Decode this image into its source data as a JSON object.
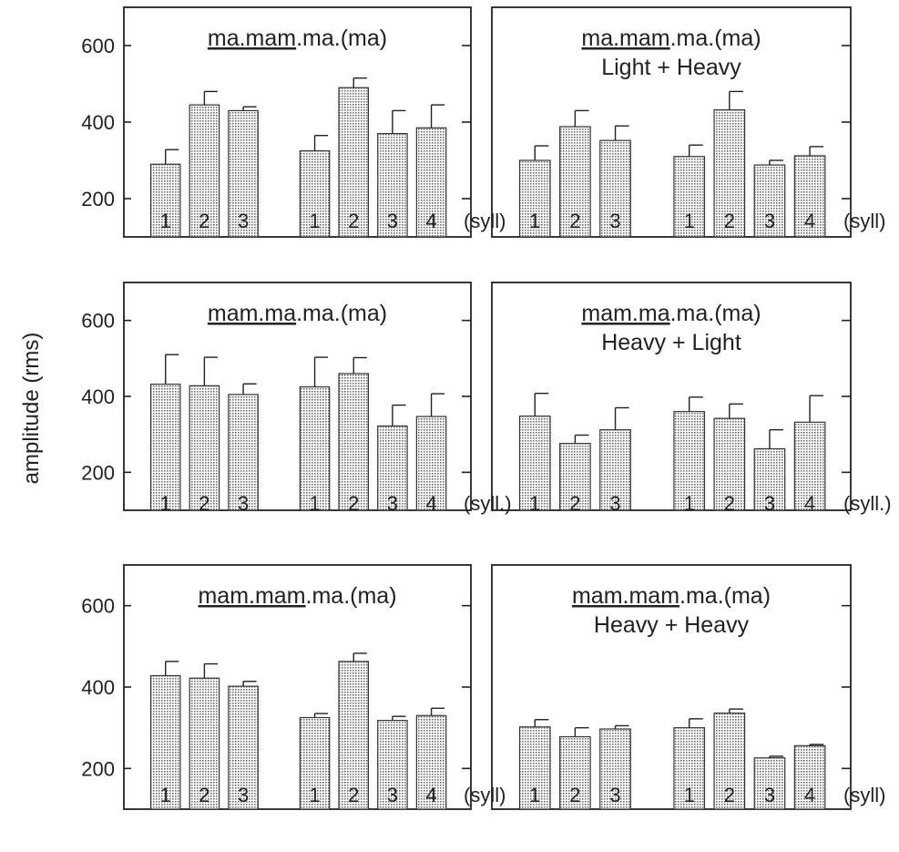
{
  "figure": {
    "ylabel": "amplitude (rms)",
    "ylim": [
      100,
      700
    ],
    "yticks": [
      200,
      400,
      600
    ]
  },
  "chart_data": [
    {
      "type": "bar",
      "title_parts": [
        {
          "text": "ma.mam",
          "underline": true
        },
        {
          "text": ".ma.(ma)",
          "underline": false
        }
      ],
      "subtitle": "",
      "groups": [
        {
          "categories": [
            "1",
            "2",
            "3"
          ],
          "values": [
            290,
            445,
            430
          ],
          "errors": [
            38,
            35,
            10
          ]
        },
        {
          "categories": [
            "1",
            "2",
            "3",
            "4"
          ],
          "values": [
            325,
            490,
            370,
            385
          ],
          "errors": [
            40,
            25,
            60,
            60
          ]
        }
      ],
      "end_label": "(syll)"
    },
    {
      "type": "bar",
      "title_parts": [
        {
          "text": "ma.mam",
          "underline": true
        },
        {
          "text": ".ma.(ma)",
          "underline": false
        }
      ],
      "subtitle": "Light + Heavy",
      "groups": [
        {
          "categories": [
            "1",
            "2",
            "3"
          ],
          "values": [
            300,
            388,
            352
          ],
          "errors": [
            38,
            42,
            38
          ]
        },
        {
          "categories": [
            "1",
            "2",
            "3",
            "4"
          ],
          "values": [
            310,
            432,
            288,
            312
          ],
          "errors": [
            30,
            48,
            12,
            24
          ]
        }
      ],
      "end_label": "(syll)"
    },
    {
      "type": "bar",
      "title_parts": [
        {
          "text": "mam.ma",
          "underline": true
        },
        {
          "text": ".ma.(ma)",
          "underline": false
        }
      ],
      "subtitle": "",
      "groups": [
        {
          "categories": [
            "1",
            "2",
            "3"
          ],
          "values": [
            432,
            428,
            405
          ],
          "errors": [
            78,
            75,
            28
          ]
        },
        {
          "categories": [
            "1",
            "2",
            "3",
            "4"
          ],
          "values": [
            425,
            460,
            322,
            347
          ],
          "errors": [
            78,
            42,
            55,
            60
          ]
        }
      ],
      "end_label": "(syll.)"
    },
    {
      "type": "bar",
      "title_parts": [
        {
          "text": "mam.ma",
          "underline": true
        },
        {
          "text": ".ma.(ma)",
          "underline": false
        }
      ],
      "subtitle": "Heavy + Light",
      "groups": [
        {
          "categories": [
            "1",
            "2",
            "3"
          ],
          "values": [
            348,
            276,
            312
          ],
          "errors": [
            60,
            22,
            58
          ]
        },
        {
          "categories": [
            "1",
            "2",
            "3",
            "4"
          ],
          "values": [
            360,
            342,
            262,
            332
          ],
          "errors": [
            38,
            38,
            50,
            70
          ]
        }
      ],
      "end_label": "(syll.)"
    },
    {
      "type": "bar",
      "title_parts": [
        {
          "text": "mam.mam",
          "underline": true
        },
        {
          "text": ".ma.(ma)",
          "underline": false
        }
      ],
      "subtitle": "",
      "groups": [
        {
          "categories": [
            "1",
            "2",
            "3"
          ],
          "values": [
            428,
            422,
            402
          ],
          "errors": [
            35,
            35,
            12
          ]
        },
        {
          "categories": [
            "1",
            "2",
            "3",
            "4"
          ],
          "values": [
            325,
            463,
            318,
            330
          ],
          "errors": [
            10,
            20,
            10,
            18
          ]
        }
      ],
      "end_label": "(syll)"
    },
    {
      "type": "bar",
      "title_parts": [
        {
          "text": "mam.mam",
          "underline": true
        },
        {
          "text": ".ma.(ma)",
          "underline": false
        }
      ],
      "subtitle": "Heavy + Heavy",
      "groups": [
        {
          "categories": [
            "1",
            "2",
            "3"
          ],
          "values": [
            302,
            278,
            297
          ],
          "errors": [
            18,
            22,
            8
          ]
        },
        {
          "categories": [
            "1",
            "2",
            "3",
            "4"
          ],
          "values": [
            300,
            336,
            226,
            256
          ],
          "errors": [
            22,
            10,
            4,
            3
          ]
        }
      ],
      "end_label": "(syll)"
    }
  ]
}
